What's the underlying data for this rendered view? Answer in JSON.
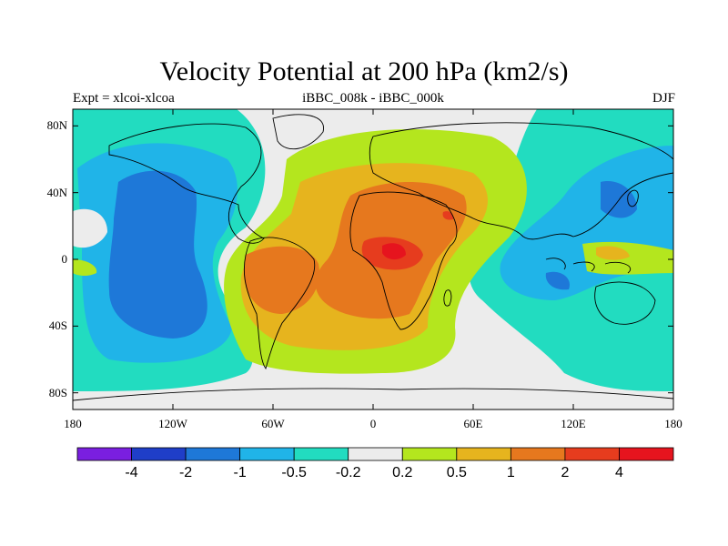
{
  "title": "Velocity Potential at 200 hPa (km2/s)",
  "subtitle_left": "Expt = xlcoi-xlcoa",
  "subtitle_center": "iBBC_008k - iBBC_000k",
  "subtitle_right": "DJF",
  "map": {
    "lon_range": [
      -180,
      180
    ],
    "lat_range": [
      -90,
      90
    ],
    "y_ticks": [
      "80N",
      "40N",
      "0",
      "40S",
      "80S"
    ],
    "y_tick_values": [
      80,
      40,
      0,
      -40,
      -80
    ],
    "x_ticks": [
      "180",
      "120W",
      "60W",
      "0",
      "60E",
      "120E",
      "180"
    ],
    "x_tick_values": [
      -180,
      -120,
      -60,
      0,
      60,
      120,
      180
    ]
  },
  "colorbar": {
    "labels": [
      "-4",
      "-2",
      "-1",
      "-0.5",
      "-0.2",
      "0.2",
      "0.5",
      "1",
      "2",
      "4"
    ],
    "colors": [
      "#7a1fe0",
      "#1f3ec8",
      "#1e78d8",
      "#20b4e8",
      "#22dcc0",
      "#ececec",
      "#b4e61e",
      "#e6b41e",
      "#e6781e",
      "#e63c1e",
      "#e6141e"
    ]
  },
  "colors": {
    "ocean_white": "#ececec",
    "land_lines": "#000000"
  }
}
